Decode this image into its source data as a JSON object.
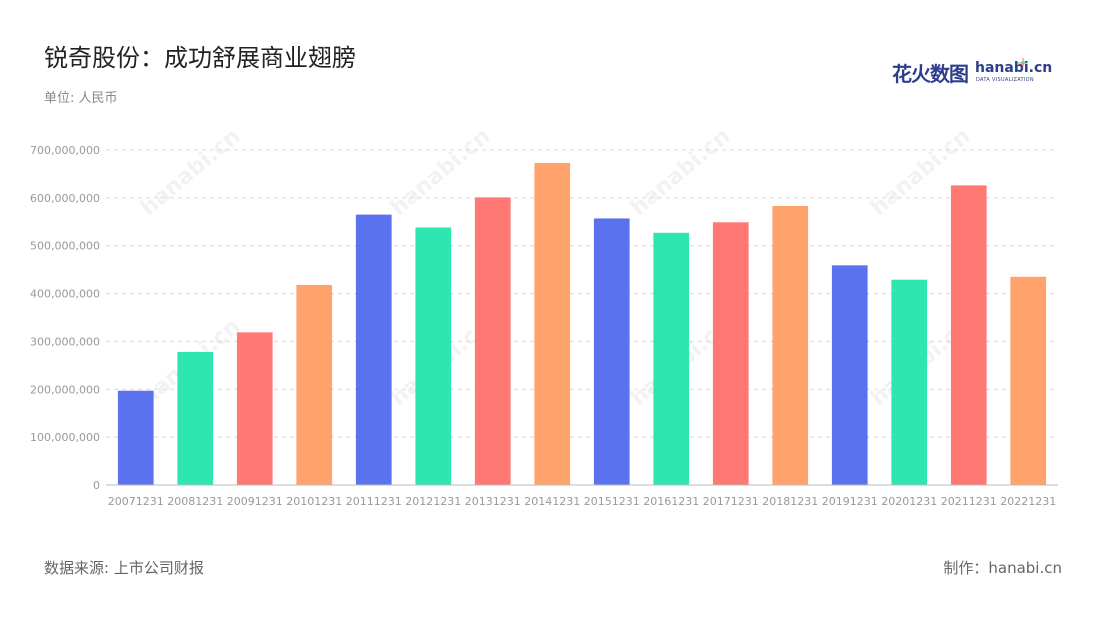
{
  "header": {
    "title": "锐奇股份：成功舒展商业翅膀",
    "unit": "单位: 人民币"
  },
  "logo": {
    "cn": "花火数图",
    "en": "hanabi.cn",
    "sub": "DATA VISUALIZATION"
  },
  "footer": {
    "source": "数据来源: 上市公司财报",
    "maker": "制作：hanabi.cn"
  },
  "colors": [
    "#5b72ee",
    "#2ee6b0",
    "#ff7874",
    "#ffa26c"
  ],
  "chart_data": {
    "type": "bar",
    "categories": [
      "20071231",
      "20081231",
      "20091231",
      "20101231",
      "20111231",
      "20121231",
      "20131231",
      "20141231",
      "20151231",
      "20161231",
      "20171231",
      "20181231",
      "20191231",
      "20201231",
      "20211231",
      "20221231"
    ],
    "values": [
      197000000,
      278000000,
      319000000,
      418000000,
      565000000,
      538000000,
      601000000,
      673000000,
      557000000,
      527000000,
      549000000,
      583000000,
      459000000,
      429000000,
      626000000,
      435000000
    ],
    "y_ticks": [
      "0",
      "100,000,000",
      "200,000,000",
      "300,000,000",
      "400,000,000",
      "500,000,000",
      "600,000,000",
      "700,000,000"
    ],
    "ylim": [
      0,
      700000000
    ],
    "grid": true,
    "legend": "none"
  }
}
